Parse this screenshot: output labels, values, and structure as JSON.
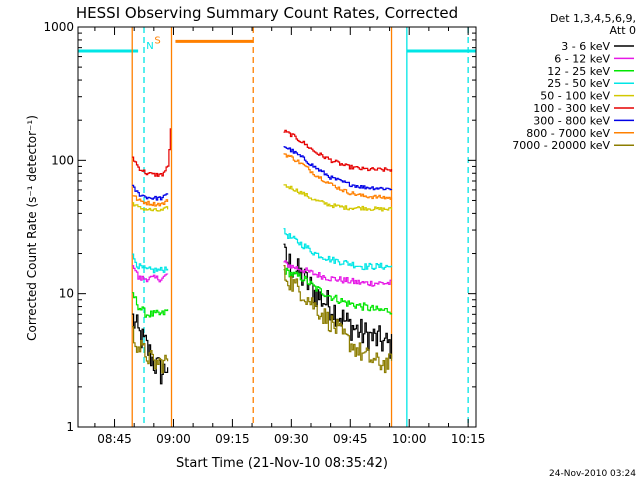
{
  "chart_data": {
    "type": "line",
    "title": "HESSI Observing Summary Count Rates, Corrected",
    "xlabel": "Start Time (21-Nov-10 08:35:42)",
    "ylabel": "Corrected Count Rate (s⁻¹ detector⁻¹)",
    "yscale": "log",
    "ylim": [
      1,
      1000
    ],
    "xlim_minutes": [
      35.7,
      137.0
    ],
    "x_ticks": [
      {
        "m": 45,
        "label": "08:45"
      },
      {
        "m": 60,
        "label": "09:00"
      },
      {
        "m": 75,
        "label": "09:15"
      },
      {
        "m": 90,
        "label": "09:30"
      },
      {
        "m": 105,
        "label": "09:45"
      },
      {
        "m": 120,
        "label": "10:00"
      },
      {
        "m": 135,
        "label": "10:15"
      }
    ],
    "y_ticks": [
      {
        "v": 1,
        "label": "1"
      },
      {
        "v": 10,
        "label": "10"
      },
      {
        "v": 100,
        "label": "100"
      },
      {
        "v": 1000,
        "label": "1000"
      }
    ],
    "legend": {
      "position": "top-right",
      "header": [
        "Det 1,3,4,5,6,9,",
        "Att 0"
      ],
      "entries": [
        {
          "label": "3 - 6 keV",
          "color": "#000000"
        },
        {
          "label": "6 - 12 keV",
          "color": "#e619e6"
        },
        {
          "label": "12 - 25 keV",
          "color": "#00e600"
        },
        {
          "label": "25 - 50 keV",
          "color": "#00e6e6"
        },
        {
          "label": "50 - 100 keV",
          "color": "#d2c800"
        },
        {
          "label": "100 - 300 keV",
          "color": "#e60000"
        },
        {
          "label": "300 - 800 keV",
          "color": "#0000e6"
        },
        {
          "label": "800 - 7000 keV",
          "color": "#ff8000"
        },
        {
          "label": "7000 - 20000 keV",
          "color": "#8c7d00"
        }
      ]
    },
    "series": [
      {
        "name": "3 - 6 keV",
        "color": "#000000",
        "noise": 0.22,
        "segments": [
          {
            "x": [
              49.5,
              51,
              53,
              55,
              57,
              58.5
            ],
            "y": [
              6.5,
              5,
              4,
              3,
              2.5,
              3
            ]
          },
          {
            "x": [
              88,
              90,
              93,
              96,
              100,
              104,
              108,
              112,
              115.5
            ],
            "y": [
              19,
              16,
              13,
              10,
              8,
              6,
              5,
              4.5,
              4
            ]
          }
        ]
      },
      {
        "name": "6 - 12 keV",
        "color": "#e619e6",
        "noise": 0.05,
        "segments": [
          {
            "x": [
              49.5,
              51,
              53,
              55,
              57,
              58.5
            ],
            "y": [
              17,
              13,
              13,
              13,
              13,
              14
            ]
          },
          {
            "x": [
              88,
              90,
              93,
              96,
              100,
              104,
              108,
              112,
              115.5
            ],
            "y": [
              17,
              16,
              15,
              14,
              13,
              12.5,
              12,
              12,
              12
            ]
          }
        ]
      },
      {
        "name": "12 - 25 keV",
        "color": "#00e600",
        "noise": 0.06,
        "segments": [
          {
            "x": [
              49.5,
              51,
              53,
              55,
              57,
              58.5
            ],
            "y": [
              10,
              8,
              7,
              7,
              7,
              7.5
            ]
          },
          {
            "x": [
              88,
              90,
              93,
              96,
              100,
              104,
              108,
              112,
              115.5
            ],
            "y": [
              15,
              14,
              13,
              11,
              9.5,
              8.5,
              8,
              7.5,
              7.5
            ]
          }
        ]
      },
      {
        "name": "25 - 50 keV",
        "color": "#00e6e6",
        "noise": 0.05,
        "segments": [
          {
            "x": [
              49.5,
              51,
              53,
              55,
              57,
              58.5
            ],
            "y": [
              19,
              16,
              15,
              15,
              15,
              16
            ]
          },
          {
            "x": [
              88,
              90,
              93,
              96,
              100,
              104,
              108,
              112,
              115.5
            ],
            "y": [
              29,
              26,
              23,
              20,
              18,
              17,
              16,
              16,
              16
            ]
          }
        ]
      },
      {
        "name": "50 - 100 keV",
        "color": "#d2c800",
        "noise": 0.03,
        "segments": [
          {
            "x": [
              49.5,
              51,
              53,
              55,
              57,
              58.5
            ],
            "y": [
              48,
              44,
              43,
              42,
              42,
              44
            ]
          },
          {
            "x": [
              88,
              90,
              93,
              96,
              100,
              104,
              108,
              112,
              115.5
            ],
            "y": [
              65,
              62,
              56,
              50,
              46,
              44,
              44,
              43,
              43
            ]
          }
        ]
      },
      {
        "name": "100 - 300 keV",
        "color": "#e60000",
        "noise": 0.03,
        "segments": [
          {
            "x": [
              49.5,
              51,
              53,
              55,
              57,
              58.5,
              59.2
            ],
            "y": [
              105,
              88,
              80,
              78,
              78,
              90,
              170
            ]
          },
          {
            "x": [
              88,
              90,
              93,
              96,
              100,
              104,
              108,
              112,
              115.5
            ],
            "y": [
              165,
              155,
              135,
              115,
              100,
              90,
              86,
              85,
              85
            ]
          }
        ]
      },
      {
        "name": "300 - 800 keV",
        "color": "#0000e6",
        "noise": 0.03,
        "segments": [
          {
            "x": [
              49.5,
              51,
              53,
              55,
              57,
              58.5
            ],
            "y": [
              63,
              56,
              53,
              52,
              52,
              56
            ]
          },
          {
            "x": [
              88,
              90,
              93,
              96,
              100,
              104,
              108,
              112,
              115.5
            ],
            "y": [
              128,
              118,
              103,
              88,
              74,
              67,
              63,
              62,
              61
            ]
          }
        ]
      },
      {
        "name": "800 - 7000 keV",
        "color": "#ff8000",
        "noise": 0.03,
        "segments": [
          {
            "x": [
              49.5,
              51,
              53,
              55,
              57,
              58.5
            ],
            "y": [
              55,
              50,
              48,
              47,
              47,
              50
            ]
          },
          {
            "x": [
              88,
              90,
              93,
              96,
              100,
              104,
              108,
              112,
              115.5
            ],
            "y": [
              112,
              105,
              92,
              78,
              66,
              58,
              54,
              53,
              52
            ]
          }
        ]
      },
      {
        "name": "7000 - 20000 keV",
        "color": "#8c7d00",
        "noise": 0.15,
        "segments": [
          {
            "x": [
              49.5,
              51,
              53,
              55,
              57,
              58.5
            ],
            "y": [
              5,
              4,
              3.5,
              3,
              3,
              3.2
            ]
          },
          {
            "x": [
              88,
              90,
              93,
              96,
              100,
              104,
              108,
              112,
              115.5
            ],
            "y": [
              14,
              12,
              10,
              8,
              6,
              4.5,
              3.5,
              3,
              3
            ]
          }
        ]
      }
    ],
    "flags": [
      {
        "kind": "night",
        "label": "N",
        "color": "#00e6e6",
        "segments": [
          [
            35.7,
            51.0
          ],
          [
            119.4,
            137.0
          ]
        ],
        "vlines": [
          {
            "m": 119.4,
            "dash": false
          },
          {
            "m": 52.5,
            "dash": true
          },
          {
            "m": 135.0,
            "dash": true
          }
        ],
        "level": 660
      },
      {
        "kind": "saa",
        "label": "S",
        "color": "#ff8000",
        "segments": [
          [
            60.5,
            80.3
          ]
        ],
        "vlines": [
          {
            "m": 49.5,
            "dash": false
          },
          {
            "m": 59.5,
            "dash": false
          },
          {
            "m": 115.5,
            "dash": false
          },
          {
            "m": 80.3,
            "dash": true
          }
        ],
        "level": 780
      }
    ]
  },
  "footer_stamp": "24-Nov-2010 03:24"
}
